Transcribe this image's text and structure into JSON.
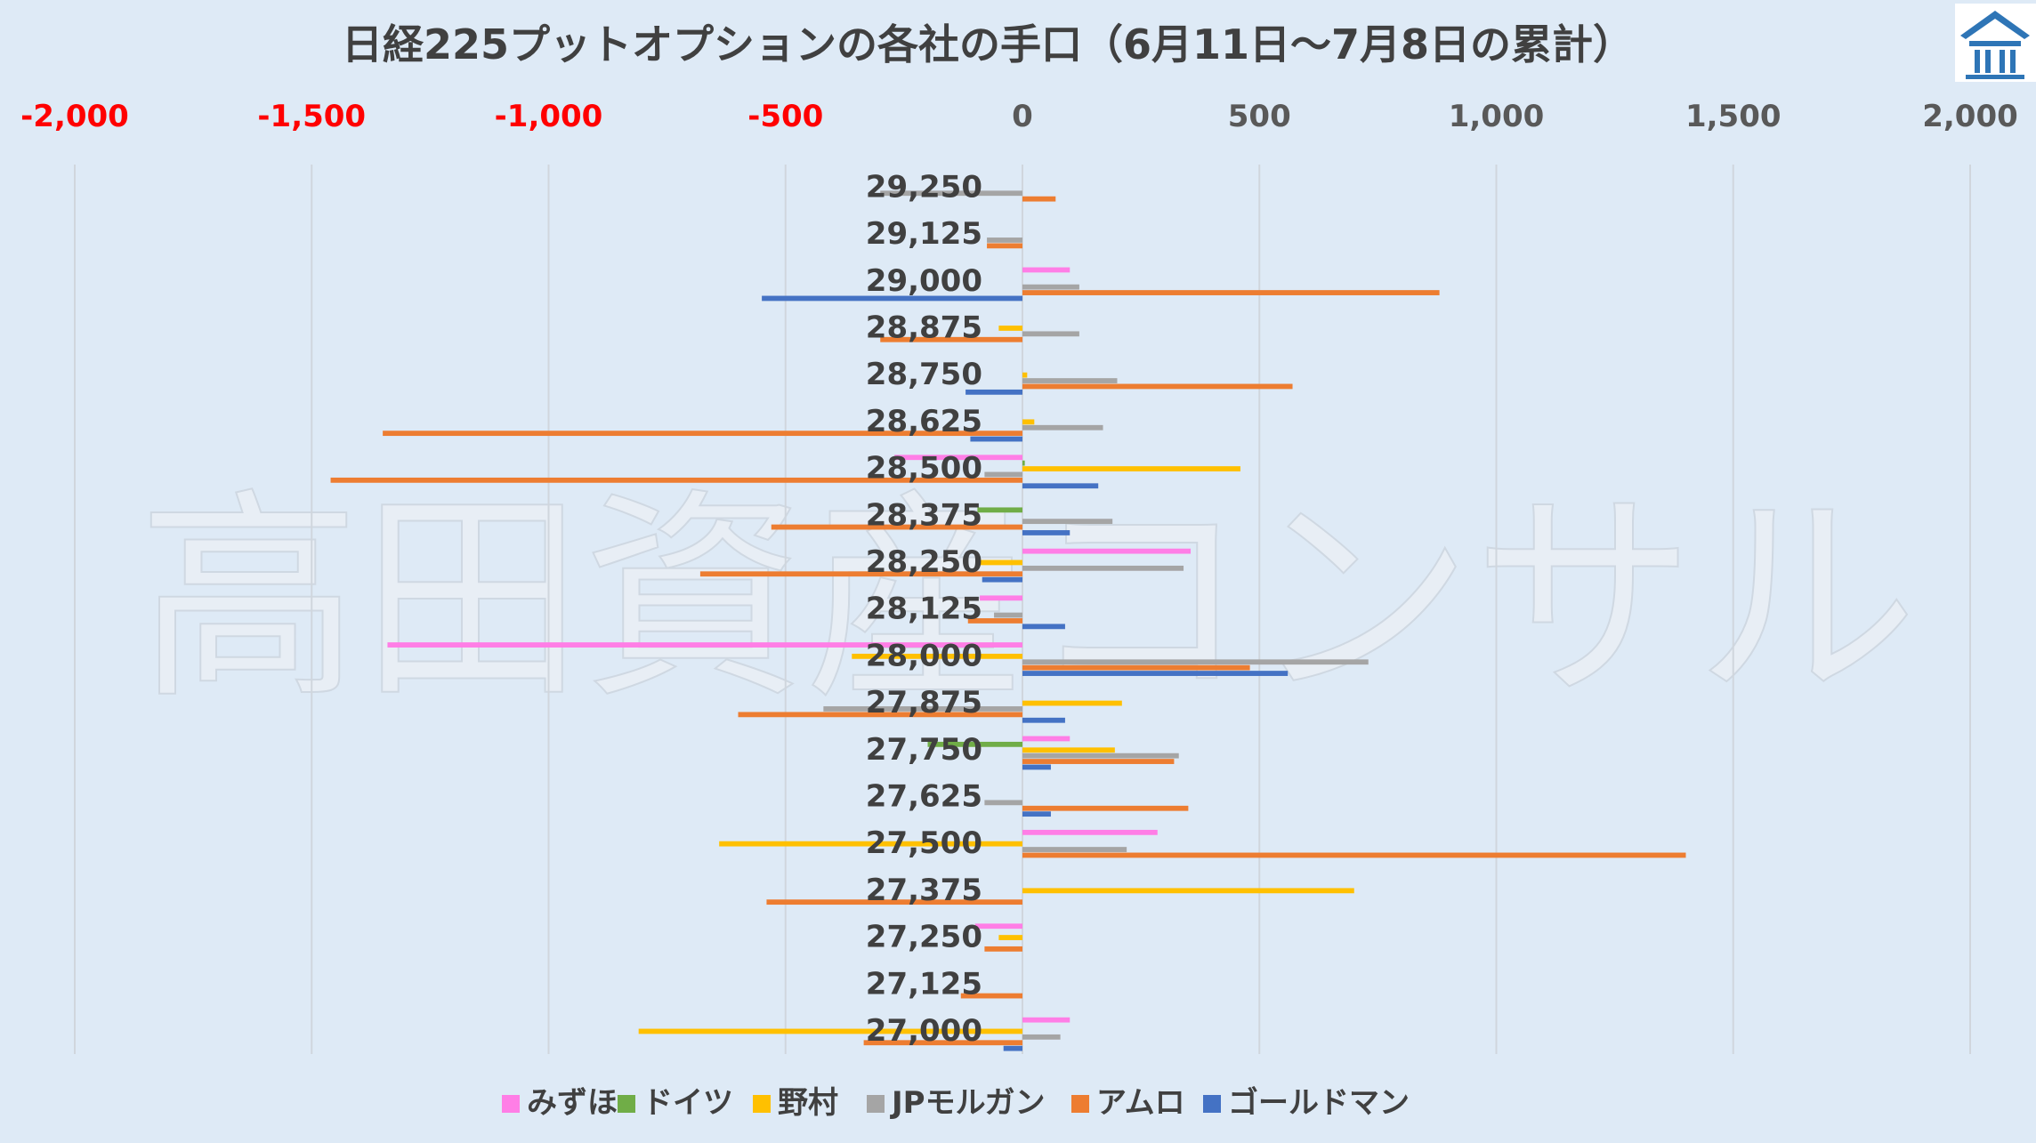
{
  "watermark": "高田資産コンサル",
  "logo": {
    "name": "building-logo",
    "color": "#2e75b6"
  },
  "chart_data": {
    "type": "bar",
    "orientation": "horizontal",
    "title": "日経225プットオプションの各社の手口（6月11日～7月8日の累計）",
    "x_ticks": [
      "-2,000",
      "-1,500",
      "-1,000",
      "-500",
      "0",
      "500",
      "1,000",
      "1,500",
      "2,000"
    ],
    "xlim": [
      -2000,
      2000
    ],
    "negative_tick_color": "#ff0000",
    "positive_tick_color": "#595959",
    "grid": "vertical",
    "legend_position": "bottom",
    "categories": [
      "29,250",
      "29,125",
      "29,000",
      "28,875",
      "28,750",
      "28,625",
      "28,500",
      "28,375",
      "28,250",
      "28,125",
      "28,000",
      "27,875",
      "27,750",
      "27,625",
      "27,500",
      "27,375",
      "27,250",
      "27,125",
      "27,000"
    ],
    "series": [
      {
        "name": "みずほ",
        "color": "#ff7ee6",
        "values": [
          0,
          0,
          100,
          0,
          0,
          0,
          -270,
          0,
          355,
          -90,
          -1340,
          0,
          100,
          0,
          285,
          0,
          -100,
          0,
          100
        ]
      },
      {
        "name": "ドイツ",
        "color": "#70ad47",
        "values": [
          0,
          0,
          0,
          0,
          0,
          0,
          5,
          -95,
          0,
          0,
          0,
          0,
          -200,
          0,
          0,
          0,
          0,
          0,
          0
        ]
      },
      {
        "name": "野村",
        "color": "#ffc000",
        "values": [
          0,
          0,
          0,
          -50,
          10,
          25,
          460,
          0,
          -90,
          0,
          -360,
          210,
          195,
          0,
          -640,
          700,
          -50,
          0,
          -810
        ]
      },
      {
        "name": "JPモルガン",
        "color": "#a5a5a5",
        "values": [
          -300,
          -75,
          120,
          120,
          200,
          170,
          -80,
          190,
          340,
          -60,
          730,
          -420,
          330,
          -80,
          220,
          0,
          0,
          0,
          80
        ]
      },
      {
        "name": "アムロ",
        "color": "#ed7d31",
        "values": [
          70,
          -75,
          880,
          -300,
          570,
          -1350,
          -1460,
          -530,
          -680,
          -115,
          480,
          -600,
          320,
          350,
          1400,
          -540,
          -80,
          -130,
          -335
        ]
      },
      {
        "name": "ゴールドマン",
        "color": "#4472c4",
        "values": [
          0,
          0,
          -550,
          0,
          -120,
          -110,
          160,
          100,
          -85,
          90,
          560,
          90,
          60,
          60,
          0,
          0,
          0,
          0,
          -40
        ]
      }
    ]
  }
}
